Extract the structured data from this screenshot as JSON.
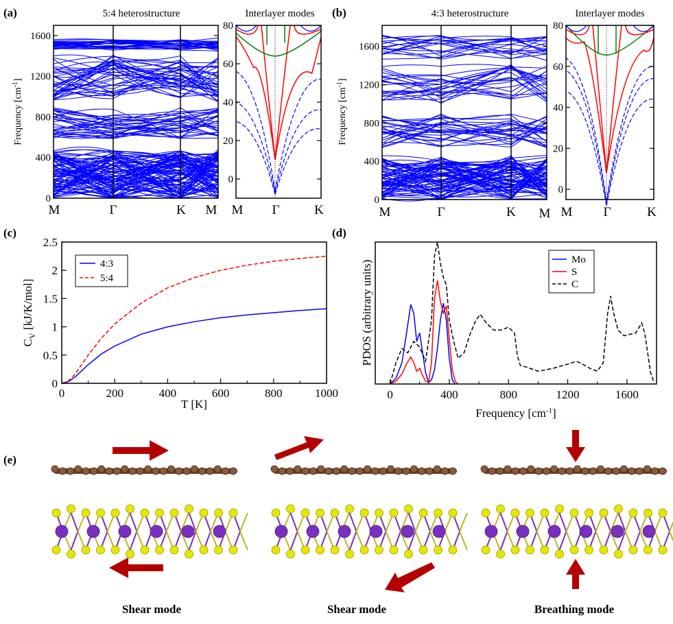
{
  "panels": {
    "a": {
      "label": "(a)",
      "left": {
        "title": "5:4 heterostructure",
        "ylabel": "Frequency [cm",
        "ylabel_sup": "-1",
        "ylabel_end": "]",
        "yticks": [
          "0",
          "400",
          "800",
          "1200",
          "1600"
        ],
        "xticks": [
          "M",
          "Γ",
          "K",
          "M"
        ],
        "ylim": [
          0,
          1700
        ]
      },
      "right": {
        "title": "Interlayer modes",
        "yticks": [
          "0",
          "20",
          "40",
          "60",
          "80"
        ],
        "xticks": [
          "M",
          "Γ",
          "K"
        ],
        "ylim": [
          -10,
          80
        ]
      }
    },
    "b": {
      "label": "(b)",
      "left": {
        "title": "4:3 heterostructure",
        "ylabel": "Frequency [cm",
        "ylabel_sup": "-1",
        "ylabel_end": "]",
        "yticks": [
          "0",
          "400",
          "800",
          "1200",
          "1600"
        ],
        "xticks": [
          "M",
          "Γ",
          "K",
          "M"
        ],
        "ylim": [
          0,
          1820
        ]
      },
      "right": {
        "title": "Interlayer modes",
        "yticks": [
          "0",
          "20",
          "40",
          "60",
          "80"
        ],
        "xticks": [
          "M",
          "Γ",
          "K"
        ],
        "ylim": [
          -5,
          80
        ]
      }
    },
    "c": {
      "label": "(c)",
      "xlabel": "T [K]",
      "ylabel": "C",
      "ylabel_sub": "V",
      "ylabel_end": " [kJ/K/mol]",
      "xticks": [
        "0",
        "200",
        "400",
        "600",
        "800",
        "1000"
      ],
      "yticks": [
        "0",
        "0.5",
        "1",
        "1.5",
        "2",
        "2.5"
      ]
    },
    "d": {
      "label": "(d)",
      "xlabel": "Frequency [cm",
      "xlabel_sup": "-1",
      "xlabel_end": "]",
      "ylabel": "PDOS (arbitrary units)",
      "xticks": [
        "0",
        "400",
        "800",
        "1200",
        "1600"
      ]
    },
    "e": {
      "label": "(e)",
      "captions": [
        "Shear mode",
        "Shear mode",
        "Breathing mode"
      ]
    }
  },
  "colors": {
    "blue": "#0000ff",
    "red": "#ff0000",
    "green": "#008000",
    "black": "#000000",
    "arrow": "#b40000",
    "carbon": "#8b5a3c",
    "sulfur": "#e6e600",
    "molybdenum": "#7b2fbe"
  },
  "chart_data": [
    {
      "type": "line",
      "panel": "c",
      "xlabel": "T [K]",
      "ylabel": "C_V [kJ/K/mol]",
      "xlim": [
        0,
        1000
      ],
      "ylim": [
        0,
        2.5
      ],
      "legend": "top-left",
      "x": [
        0,
        25,
        50,
        100,
        150,
        200,
        300,
        400,
        500,
        600,
        700,
        800,
        900,
        1000
      ],
      "series": [
        {
          "name": "4:3",
          "color": "#0000ff",
          "dash": "solid",
          "values": [
            0,
            0.03,
            0.11,
            0.33,
            0.52,
            0.66,
            0.87,
            1.0,
            1.09,
            1.16,
            1.21,
            1.25,
            1.29,
            1.32
          ]
        },
        {
          "name": "5:4",
          "color": "#ff0000",
          "dash": "dashed",
          "values": [
            0,
            0.04,
            0.16,
            0.5,
            0.8,
            1.05,
            1.42,
            1.69,
            1.87,
            2.0,
            2.09,
            2.16,
            2.21,
            2.25
          ]
        }
      ]
    },
    {
      "type": "line",
      "panel": "d",
      "xlabel": "Frequency [cm-1]",
      "ylabel": "PDOS (arbitrary units)",
      "xlim": [
        -100,
        1800
      ],
      "ylim": [
        0,
        10
      ],
      "legend": "top-right",
      "series": [
        {
          "name": "Mo",
          "color": "#0000ff",
          "dash": "solid",
          "x": [
            0,
            40,
            80,
            110,
            140,
            160,
            180,
            200,
            220,
            240,
            260,
            280,
            300,
            320,
            340,
            360,
            380,
            400,
            420,
            440
          ],
          "values": [
            0,
            0.4,
            1.5,
            3.5,
            5.6,
            5.0,
            3.0,
            3.6,
            2.2,
            0.8,
            0.1,
            0.3,
            1.0,
            2.5,
            4.5,
            5.7,
            4.5,
            1.8,
            0.3,
            0
          ]
        },
        {
          "name": "S",
          "color": "#ff0000",
          "dash": "solid",
          "x": [
            0,
            40,
            80,
            110,
            140,
            160,
            180,
            200,
            220,
            240,
            260,
            280,
            300,
            320,
            340,
            360,
            380,
            400,
            420,
            440,
            460
          ],
          "values": [
            0,
            0.2,
            0.7,
            1.4,
            1.9,
            1.5,
            0.9,
            1.1,
            0.6,
            0.2,
            0.1,
            1.5,
            6.0,
            7.3,
            5.8,
            5.0,
            5.5,
            3.2,
            1.0,
            0.2,
            0
          ]
        },
        {
          "name": "C",
          "color": "#000000",
          "dash": "dashed",
          "x": [
            0,
            40,
            80,
            120,
            160,
            200,
            240,
            280,
            300,
            320,
            340,
            360,
            380,
            400,
            430,
            460,
            500,
            540,
            580,
            610,
            650,
            700,
            750,
            800,
            840,
            860,
            880,
            920,
            1000,
            1100,
            1200,
            1260,
            1300,
            1350,
            1400,
            1440,
            1470,
            1490,
            1510,
            1540,
            1580,
            1620,
            1660,
            1700,
            1720,
            1760,
            1780
          ],
          "values": [
            0,
            1.5,
            2.5,
            2.2,
            3.0,
            2.6,
            1.6,
            4.5,
            9.0,
            10.0,
            8.5,
            7.5,
            7.0,
            4.5,
            3.0,
            1.8,
            2.2,
            3.5,
            4.5,
            4.9,
            4.3,
            3.8,
            3.8,
            4.0,
            3.6,
            2.0,
            1.3,
            1.2,
            0.9,
            1.1,
            1.4,
            1.6,
            1.4,
            1.1,
            0.9,
            1.5,
            5.0,
            6.2,
            5.0,
            3.8,
            3.4,
            3.5,
            3.6,
            4.3,
            3.6,
            0.8,
            0.2
          ]
        }
      ]
    },
    {
      "type": "line",
      "panel": "a-left",
      "description_series": "phonon band dispersion",
      "xticks": [
        "M",
        "Γ",
        "K",
        "M"
      ],
      "ylim": [
        0,
        1700
      ],
      "band_groups": [
        [
          0,
          470,
          90
        ],
        [
          580,
          900,
          30
        ],
        [
          960,
          1420,
          38
        ],
        [
          1450,
          1560,
          26
        ]
      ]
    },
    {
      "type": "line",
      "panel": "b-left",
      "xticks": [
        "M",
        "Γ",
        "K",
        "M"
      ],
      "ylim": [
        0,
        1820
      ],
      "band_groups": [
        [
          0,
          460,
          70
        ],
        [
          540,
          900,
          26
        ],
        [
          1000,
          1420,
          22
        ],
        [
          1460,
          1720,
          18
        ]
      ]
    }
  ]
}
